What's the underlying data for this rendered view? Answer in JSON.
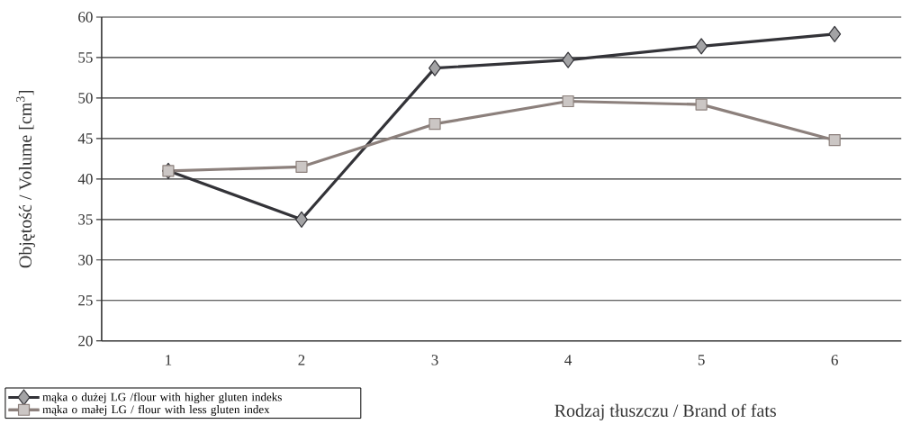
{
  "chart_data": {
    "type": "line",
    "xlabel": "Rodzaj tłuszczu / Brand of fats",
    "ylabel": "Objętość / Volume [cm$^{3}$]",
    "categories": [
      "1",
      "2",
      "3",
      "4",
      "5",
      "6"
    ],
    "series": [
      {
        "name": "mąka o dużej LG /flour with higher gluten indeks",
        "color": "#333338",
        "marker": "diamond",
        "values": [
          41,
          35,
          53.7,
          54.7,
          56.4,
          57.9
        ]
      },
      {
        "name": "mąka o małej LG / flour with less gluten index",
        "color": "#8c807c",
        "marker": "square",
        "values": [
          41,
          41.5,
          46.8,
          49.6,
          49.2,
          44.8
        ]
      }
    ],
    "ylim": [
      20,
      60
    ],
    "yticks": [
      20,
      25,
      30,
      35,
      40,
      45,
      50,
      55,
      60
    ],
    "grid": "y",
    "legend": "bottom left",
    "line_style": "solid"
  }
}
